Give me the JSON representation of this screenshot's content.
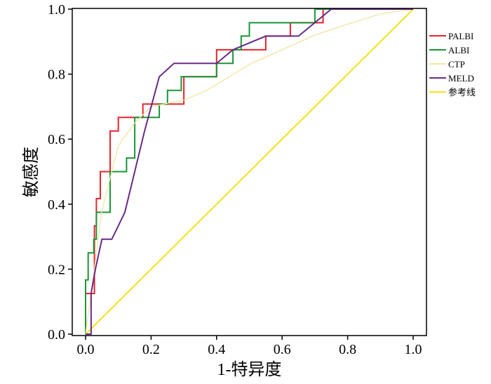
{
  "chart_data": {
    "type": "line",
    "title": "",
    "xlabel": "1-特异度",
    "ylabel": "敏感度",
    "xlim": [
      0.0,
      1.0
    ],
    "ylim": [
      0.0,
      1.0
    ],
    "xticks": [
      "0.0",
      "0.2",
      "0.4",
      "0.6",
      "0.8",
      "1.0"
    ],
    "yticks": [
      "0.0",
      "0.2",
      "0.4",
      "0.6",
      "0.8",
      "1.0"
    ],
    "grid": false,
    "legend": "right",
    "series": [
      {
        "name": "PALBI",
        "color": "#e8242c",
        "step": true,
        "points": [
          [
            0.0,
            0.0
          ],
          [
            0.0,
            0.125
          ],
          [
            0.027,
            0.125
          ],
          [
            0.027,
            0.333
          ],
          [
            0.033,
            0.333
          ],
          [
            0.033,
            0.417
          ],
          [
            0.045,
            0.417
          ],
          [
            0.045,
            0.5
          ],
          [
            0.075,
            0.5
          ],
          [
            0.075,
            0.625
          ],
          [
            0.1,
            0.625
          ],
          [
            0.1,
            0.667
          ],
          [
            0.175,
            0.667
          ],
          [
            0.175,
            0.708
          ],
          [
            0.2,
            0.708
          ],
          [
            0.2,
            0.708
          ],
          [
            0.3,
            0.708
          ],
          [
            0.3,
            0.792
          ],
          [
            0.4,
            0.792
          ],
          [
            0.4,
            0.875
          ],
          [
            0.55,
            0.875
          ],
          [
            0.55,
            0.917
          ],
          [
            0.625,
            0.917
          ],
          [
            0.625,
            0.958
          ],
          [
            0.725,
            0.958
          ],
          [
            0.725,
            1.0
          ],
          [
            1.0,
            1.0
          ]
        ]
      },
      {
        "name": "ALBI",
        "color": "#1a9638",
        "step": true,
        "points": [
          [
            0.0,
            0.0
          ],
          [
            0.0,
            0.167
          ],
          [
            0.008,
            0.167
          ],
          [
            0.008,
            0.25
          ],
          [
            0.025,
            0.25
          ],
          [
            0.025,
            0.292
          ],
          [
            0.033,
            0.292
          ],
          [
            0.033,
            0.375
          ],
          [
            0.075,
            0.375
          ],
          [
            0.075,
            0.5
          ],
          [
            0.125,
            0.5
          ],
          [
            0.125,
            0.542
          ],
          [
            0.15,
            0.542
          ],
          [
            0.15,
            0.667
          ],
          [
            0.225,
            0.667
          ],
          [
            0.225,
            0.708
          ],
          [
            0.25,
            0.708
          ],
          [
            0.25,
            0.75
          ],
          [
            0.292,
            0.75
          ],
          [
            0.292,
            0.792
          ],
          [
            0.4,
            0.792
          ],
          [
            0.4,
            0.833
          ],
          [
            0.45,
            0.833
          ],
          [
            0.45,
            0.875
          ],
          [
            0.475,
            0.875
          ],
          [
            0.475,
            0.917
          ],
          [
            0.5,
            0.917
          ],
          [
            0.5,
            0.958
          ],
          [
            0.7,
            0.958
          ],
          [
            0.7,
            1.0
          ],
          [
            1.0,
            1.0
          ]
        ]
      },
      {
        "name": "CTP",
        "color": "#f0e6a0",
        "step": false,
        "points": [
          [
            0.0,
            0.0
          ],
          [
            0.02,
            0.15
          ],
          [
            0.05,
            0.38
          ],
          [
            0.1,
            0.58
          ],
          [
            0.15,
            0.65
          ],
          [
            0.2,
            0.7
          ],
          [
            0.3,
            0.72
          ],
          [
            0.37,
            0.75
          ],
          [
            0.5,
            0.83
          ],
          [
            0.6,
            0.875
          ],
          [
            0.7,
            0.92
          ],
          [
            0.82,
            0.96
          ],
          [
            0.9,
            0.985
          ],
          [
            1.0,
            1.0
          ]
        ]
      },
      {
        "name": "MELD",
        "color": "#6a2a88",
        "step": false,
        "points": [
          [
            0.0,
            0.0
          ],
          [
            0.017,
            0.0
          ],
          [
            0.017,
            0.125
          ],
          [
            0.03,
            0.2
          ],
          [
            0.05,
            0.292
          ],
          [
            0.08,
            0.292
          ],
          [
            0.12,
            0.375
          ],
          [
            0.18,
            0.625
          ],
          [
            0.225,
            0.792
          ],
          [
            0.27,
            0.833
          ],
          [
            0.4,
            0.833
          ],
          [
            0.45,
            0.875
          ],
          [
            0.55,
            0.917
          ],
          [
            0.65,
            0.917
          ],
          [
            0.75,
            1.0
          ],
          [
            1.0,
            1.0
          ]
        ]
      },
      {
        "name": "参考线",
        "color": "#f2e21c",
        "step": false,
        "points": [
          [
            0.0,
            0.0
          ],
          [
            1.0,
            1.0
          ]
        ]
      }
    ]
  }
}
